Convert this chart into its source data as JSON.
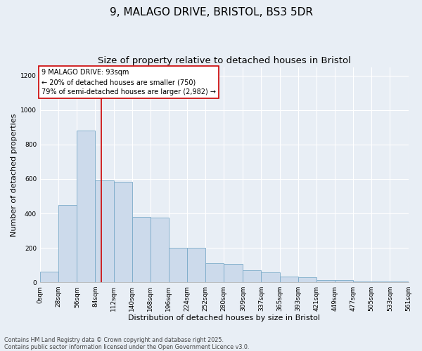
{
  "title_line1": "9, MALAGO DRIVE, BRISTOL, BS3 5DR",
  "title_line2": "Size of property relative to detached houses in Bristol",
  "xlabel": "Distribution of detached houses by size in Bristol",
  "ylabel": "Number of detached properties",
  "bar_color": "#ccdaeb",
  "bar_edge_color": "#7aaac8",
  "vline_color": "#cc0000",
  "vline_x": 93,
  "annotation_text": "9 MALAGO DRIVE: 93sqm\n← 20% of detached houses are smaller (750)\n79% of semi-detached houses are larger (2,982) →",
  "bin_edges": [
    0,
    28,
    56,
    84,
    112,
    140,
    168,
    196,
    224,
    252,
    280,
    309,
    337,
    365,
    393,
    421,
    449,
    477,
    505,
    533,
    561
  ],
  "bar_heights": [
    60,
    450,
    880,
    590,
    585,
    380,
    375,
    200,
    200,
    110,
    105,
    70,
    58,
    35,
    30,
    14,
    12,
    5,
    5,
    3
  ],
  "ylim": [
    0,
    1250
  ],
  "yticks": [
    0,
    200,
    400,
    600,
    800,
    1000,
    1200
  ],
  "background_color": "#e8eef5",
  "footer_line1": "Contains HM Land Registry data © Crown copyright and database right 2025.",
  "footer_line2": "Contains public sector information licensed under the Open Government Licence v3.0.",
  "title_fontsize": 11,
  "subtitle_fontsize": 9.5,
  "tick_fontsize": 6.5,
  "axis_label_fontsize": 8,
  "annotation_fontsize": 7,
  "footer_fontsize": 5.8
}
